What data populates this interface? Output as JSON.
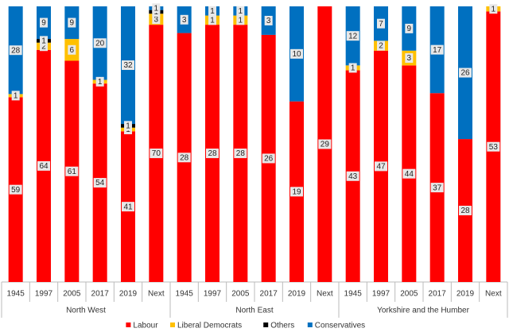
{
  "chart_data": {
    "type": "stacked-percent-bar",
    "categories": [
      "1945",
      "1997",
      "2005",
      "2017",
      "2019",
      "Next",
      "1945",
      "1997",
      "2005",
      "2017",
      "2019",
      "Next",
      "1945",
      "1997",
      "2005",
      "2017",
      "2019",
      "Next"
    ],
    "groups": [
      {
        "name": "North West",
        "size": 6
      },
      {
        "name": "North East",
        "size": 6
      },
      {
        "name": "Yorkshire and the Humber",
        "size": 6
      }
    ],
    "series": [
      {
        "name": "Labour",
        "color": "#ff0000",
        "values": [
          59,
          64,
          61,
          54,
          41,
          70,
          28,
          28,
          28,
          26,
          19,
          29,
          43,
          47,
          44,
          37,
          28,
          53
        ]
      },
      {
        "name": "Liberal Democrats",
        "color": "#ffc000",
        "values": [
          1,
          2,
          6,
          1,
          1,
          3,
          null,
          1,
          1,
          null,
          null,
          null,
          1,
          2,
          3,
          null,
          null,
          1
        ]
      },
      {
        "name": "Others",
        "color": "#000000",
        "values": [
          null,
          1,
          null,
          null,
          1,
          1,
          null,
          null,
          null,
          null,
          null,
          null,
          null,
          null,
          null,
          null,
          null,
          null
        ]
      },
      {
        "name": "Conservatives",
        "color": "#0070c0",
        "values": [
          28,
          9,
          9,
          20,
          32,
          1,
          3,
          1,
          1,
          3,
          10,
          null,
          12,
          7,
          9,
          17,
          26,
          null
        ]
      }
    ],
    "legend": "bottom"
  }
}
